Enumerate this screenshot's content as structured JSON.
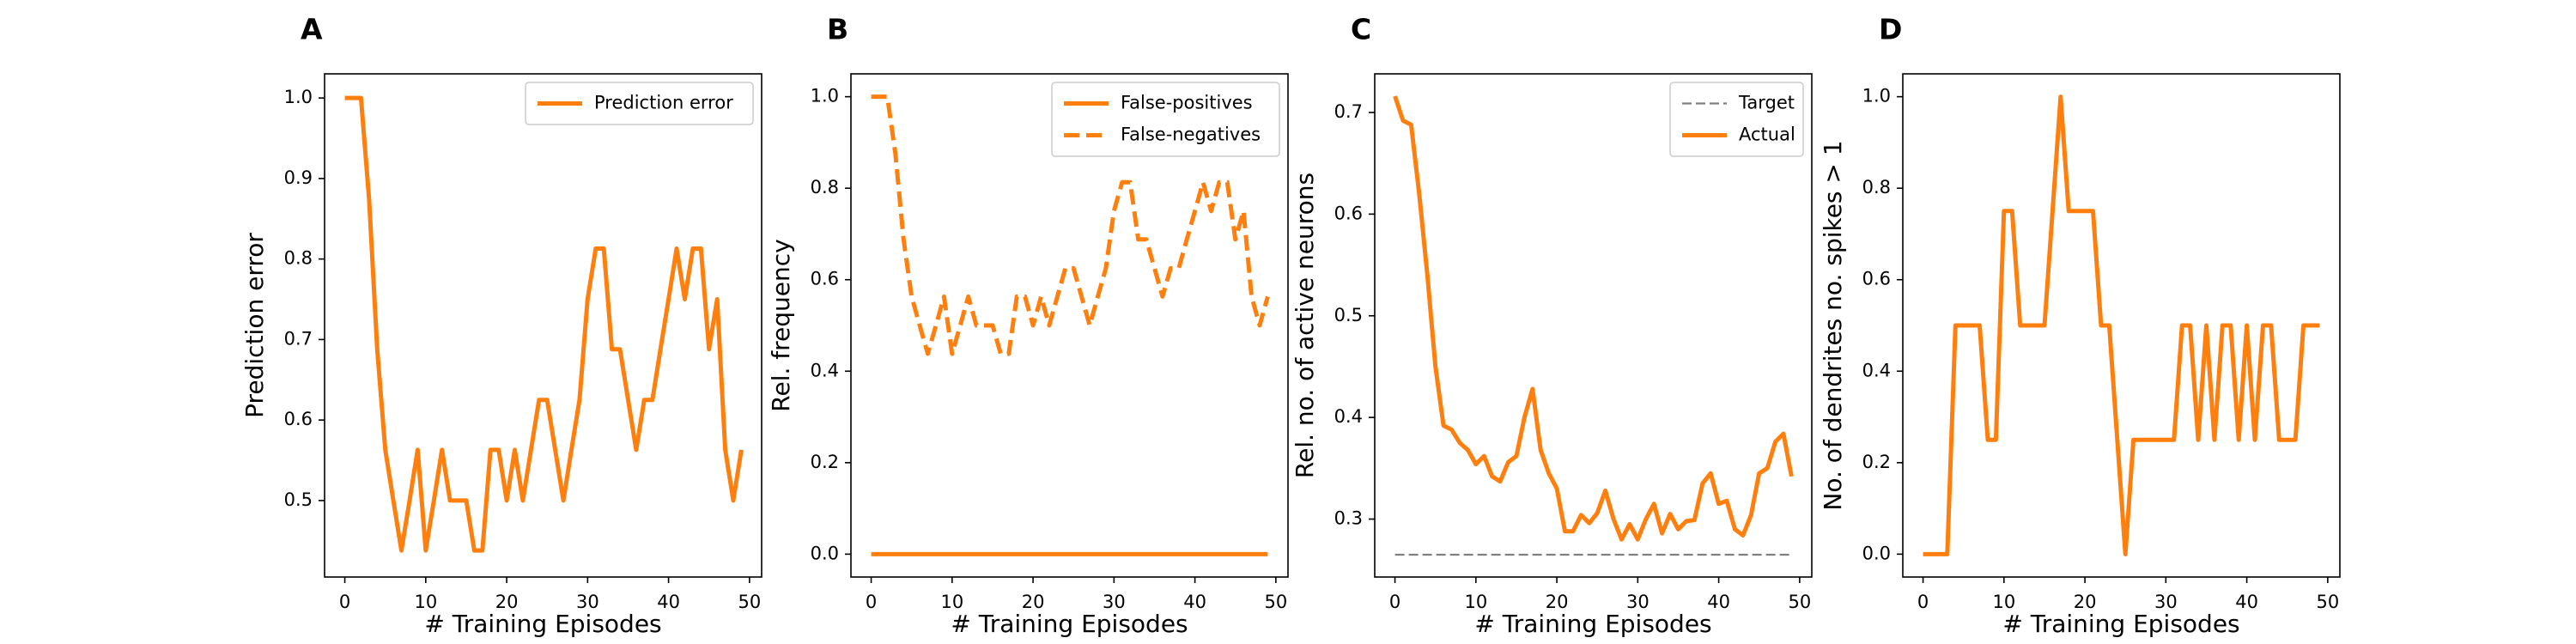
{
  "chart_data": [
    {
      "panel_label": "A",
      "type": "line",
      "xlabel": "# Training Episodes",
      "ylabel": "Prediction error",
      "xlim": [
        -2.5,
        51.5
      ],
      "ylim": [
        0.405,
        1.03
      ],
      "xticks": [
        0,
        10,
        20,
        30,
        40,
        50
      ],
      "yticks": [
        0.5,
        0.6,
        0.7,
        0.8,
        0.9,
        1.0
      ],
      "ytick_labels": [
        "0.5",
        "0.6",
        "0.7",
        "0.8",
        "0.9",
        "1.0"
      ],
      "legend": "upper right",
      "grid": false,
      "series": [
        {
          "name": "Prediction error",
          "style": "solid",
          "color": "#ff7f0e",
          "x": [
            0,
            1,
            2,
            3,
            4,
            5,
            6,
            7,
            8,
            9,
            10,
            11,
            12,
            13,
            14,
            15,
            16,
            17,
            18,
            19,
            20,
            21,
            22,
            23,
            24,
            25,
            26,
            27,
            28,
            29,
            30,
            31,
            32,
            33,
            34,
            35,
            36,
            37,
            38,
            39,
            40,
            41,
            42,
            43,
            44,
            45,
            46,
            47,
            48,
            49
          ],
          "y": [
            1.0,
            1.0,
            1.0,
            0.875,
            0.688,
            0.563,
            0.5,
            0.438,
            0.5,
            0.563,
            0.438,
            0.5,
            0.563,
            0.5,
            0.5,
            0.5,
            0.438,
            0.438,
            0.563,
            0.563,
            0.5,
            0.563,
            0.5,
            0.563,
            0.625,
            0.625,
            0.563,
            0.5,
            0.563,
            0.625,
            0.75,
            0.813,
            0.813,
            0.688,
            0.688,
            0.625,
            0.563,
            0.625,
            0.625,
            0.688,
            0.75,
            0.813,
            0.75,
            0.813,
            0.813,
            0.688,
            0.75,
            0.563,
            0.5,
            0.563
          ]
        }
      ]
    },
    {
      "panel_label": "B",
      "type": "line",
      "xlabel": "# Training Episodes",
      "ylabel": "Rel. frequency",
      "xlim": [
        -2.5,
        51.5
      ],
      "ylim": [
        -0.05,
        1.05
      ],
      "xticks": [
        0,
        10,
        20,
        30,
        40,
        50
      ],
      "yticks": [
        0.0,
        0.2,
        0.4,
        0.6,
        0.8,
        1.0
      ],
      "ytick_labels": [
        "0.0",
        "0.2",
        "0.4",
        "0.6",
        "0.8",
        "1.0"
      ],
      "legend": "upper right",
      "grid": false,
      "series": [
        {
          "name": "False-positives",
          "style": "solid",
          "color": "#ff7f0e",
          "x": [
            0,
            1,
            2,
            3,
            4,
            5,
            6,
            7,
            8,
            9,
            10,
            11,
            12,
            13,
            14,
            15,
            16,
            17,
            18,
            19,
            20,
            21,
            22,
            23,
            24,
            25,
            26,
            27,
            28,
            29,
            30,
            31,
            32,
            33,
            34,
            35,
            36,
            37,
            38,
            39,
            40,
            41,
            42,
            43,
            44,
            45,
            46,
            47,
            48,
            49
          ],
          "y": [
            0,
            0,
            0,
            0,
            0,
            0,
            0,
            0,
            0,
            0,
            0,
            0,
            0,
            0,
            0,
            0,
            0,
            0,
            0,
            0,
            0,
            0,
            0,
            0,
            0,
            0,
            0,
            0,
            0,
            0,
            0,
            0,
            0,
            0,
            0,
            0,
            0,
            0,
            0,
            0,
            0,
            0,
            0,
            0,
            0,
            0,
            0,
            0,
            0,
            0
          ]
        },
        {
          "name": "False-negatives",
          "style": "dashed",
          "color": "#ff7f0e",
          "x": [
            0,
            1,
            2,
            3,
            4,
            5,
            6,
            7,
            8,
            9,
            10,
            11,
            12,
            13,
            14,
            15,
            16,
            17,
            18,
            19,
            20,
            21,
            22,
            23,
            24,
            25,
            26,
            27,
            28,
            29,
            30,
            31,
            32,
            33,
            34,
            35,
            36,
            37,
            38,
            39,
            40,
            41,
            42,
            43,
            44,
            45,
            46,
            47,
            48,
            49
          ],
          "y": [
            1.0,
            1.0,
            1.0,
            0.875,
            0.688,
            0.563,
            0.5,
            0.438,
            0.5,
            0.563,
            0.438,
            0.5,
            0.563,
            0.5,
            0.5,
            0.5,
            0.438,
            0.438,
            0.563,
            0.563,
            0.5,
            0.563,
            0.5,
            0.563,
            0.625,
            0.625,
            0.563,
            0.5,
            0.563,
            0.625,
            0.75,
            0.813,
            0.813,
            0.688,
            0.688,
            0.625,
            0.563,
            0.625,
            0.625,
            0.688,
            0.75,
            0.813,
            0.75,
            0.813,
            0.813,
            0.688,
            0.75,
            0.563,
            0.5,
            0.563
          ]
        }
      ]
    },
    {
      "panel_label": "C",
      "type": "line",
      "xlabel": "# Training Episodes",
      "ylabel": "Rel. no. of active neurons",
      "xlim": [
        -2.5,
        51.5
      ],
      "ylim": [
        0.243,
        0.738
      ],
      "xticks": [
        0,
        10,
        20,
        30,
        40,
        50
      ],
      "yticks": [
        0.3,
        0.4,
        0.5,
        0.6,
        0.7
      ],
      "ytick_labels": [
        "0.3",
        "0.4",
        "0.5",
        "0.6",
        "0.7"
      ],
      "legend": "upper right",
      "grid": false,
      "series": [
        {
          "name": "Target",
          "style": "dashed",
          "color": "#7f7f7f",
          "x": [
            0,
            49
          ],
          "y": [
            0.265,
            0.265
          ]
        },
        {
          "name": "Actual",
          "style": "solid",
          "color": "#ff7f0e",
          "x": [
            0,
            1,
            2,
            3,
            4,
            5,
            6,
            7,
            8,
            9,
            10,
            11,
            12,
            13,
            14,
            15,
            16,
            17,
            18,
            19,
            20,
            21,
            22,
            23,
            24,
            25,
            26,
            27,
            28,
            29,
            30,
            31,
            32,
            33,
            34,
            35,
            36,
            37,
            38,
            39,
            40,
            41,
            42,
            43,
            44,
            45,
            46,
            47,
            48,
            49
          ],
          "y": [
            0.716,
            0.692,
            0.688,
            0.62,
            0.54,
            0.45,
            0.392,
            0.388,
            0.375,
            0.368,
            0.354,
            0.362,
            0.342,
            0.337,
            0.356,
            0.362,
            0.4,
            0.428,
            0.368,
            0.345,
            0.33,
            0.288,
            0.288,
            0.304,
            0.296,
            0.306,
            0.328,
            0.3,
            0.28,
            0.295,
            0.28,
            0.3,
            0.315,
            0.286,
            0.305,
            0.29,
            0.298,
            0.299,
            0.335,
            0.345,
            0.315,
            0.318,
            0.29,
            0.284,
            0.304,
            0.345,
            0.35,
            0.376,
            0.384,
            0.342
          ]
        }
      ]
    },
    {
      "panel_label": "D",
      "type": "line",
      "xlabel": "# Training Episodes",
      "ylabel": "No. of dendrites no. spikes > 1",
      "xlim": [
        -2.5,
        51.5
      ],
      "ylim": [
        -0.05,
        1.05
      ],
      "xticks": [
        0,
        10,
        20,
        30,
        40,
        50
      ],
      "yticks": [
        0.0,
        0.2,
        0.4,
        0.6,
        0.8,
        1.0
      ],
      "ytick_labels": [
        "0.0",
        "0.2",
        "0.4",
        "0.6",
        "0.8",
        "1.0"
      ],
      "legend": "none",
      "grid": false,
      "series": [
        {
          "name": "",
          "style": "solid",
          "color": "#ff7f0e",
          "x": [
            0,
            1,
            2,
            3,
            4,
            5,
            6,
            7,
            8,
            9,
            10,
            11,
            12,
            13,
            14,
            15,
            16,
            17,
            18,
            19,
            20,
            21,
            22,
            23,
            24,
            25,
            26,
            27,
            28,
            29,
            30,
            31,
            32,
            33,
            34,
            35,
            36,
            37,
            38,
            39,
            40,
            41,
            42,
            43,
            44,
            45,
            46,
            47,
            48,
            49
          ],
          "y": [
            0,
            0,
            0,
            0,
            0.5,
            0.5,
            0.5,
            0.5,
            0.25,
            0.25,
            0.75,
            0.75,
            0.5,
            0.5,
            0.5,
            0.5,
            0.75,
            1.0,
            0.75,
            0.75,
            0.75,
            0.75,
            0.5,
            0.5,
            0.25,
            0,
            0.25,
            0.25,
            0.25,
            0.25,
            0.25,
            0.25,
            0.5,
            0.5,
            0.25,
            0.5,
            0.25,
            0.5,
            0.5,
            0.25,
            0.5,
            0.25,
            0.5,
            0.5,
            0.25,
            0.25,
            0.25,
            0.5,
            0.5,
            0.5
          ]
        }
      ]
    }
  ]
}
